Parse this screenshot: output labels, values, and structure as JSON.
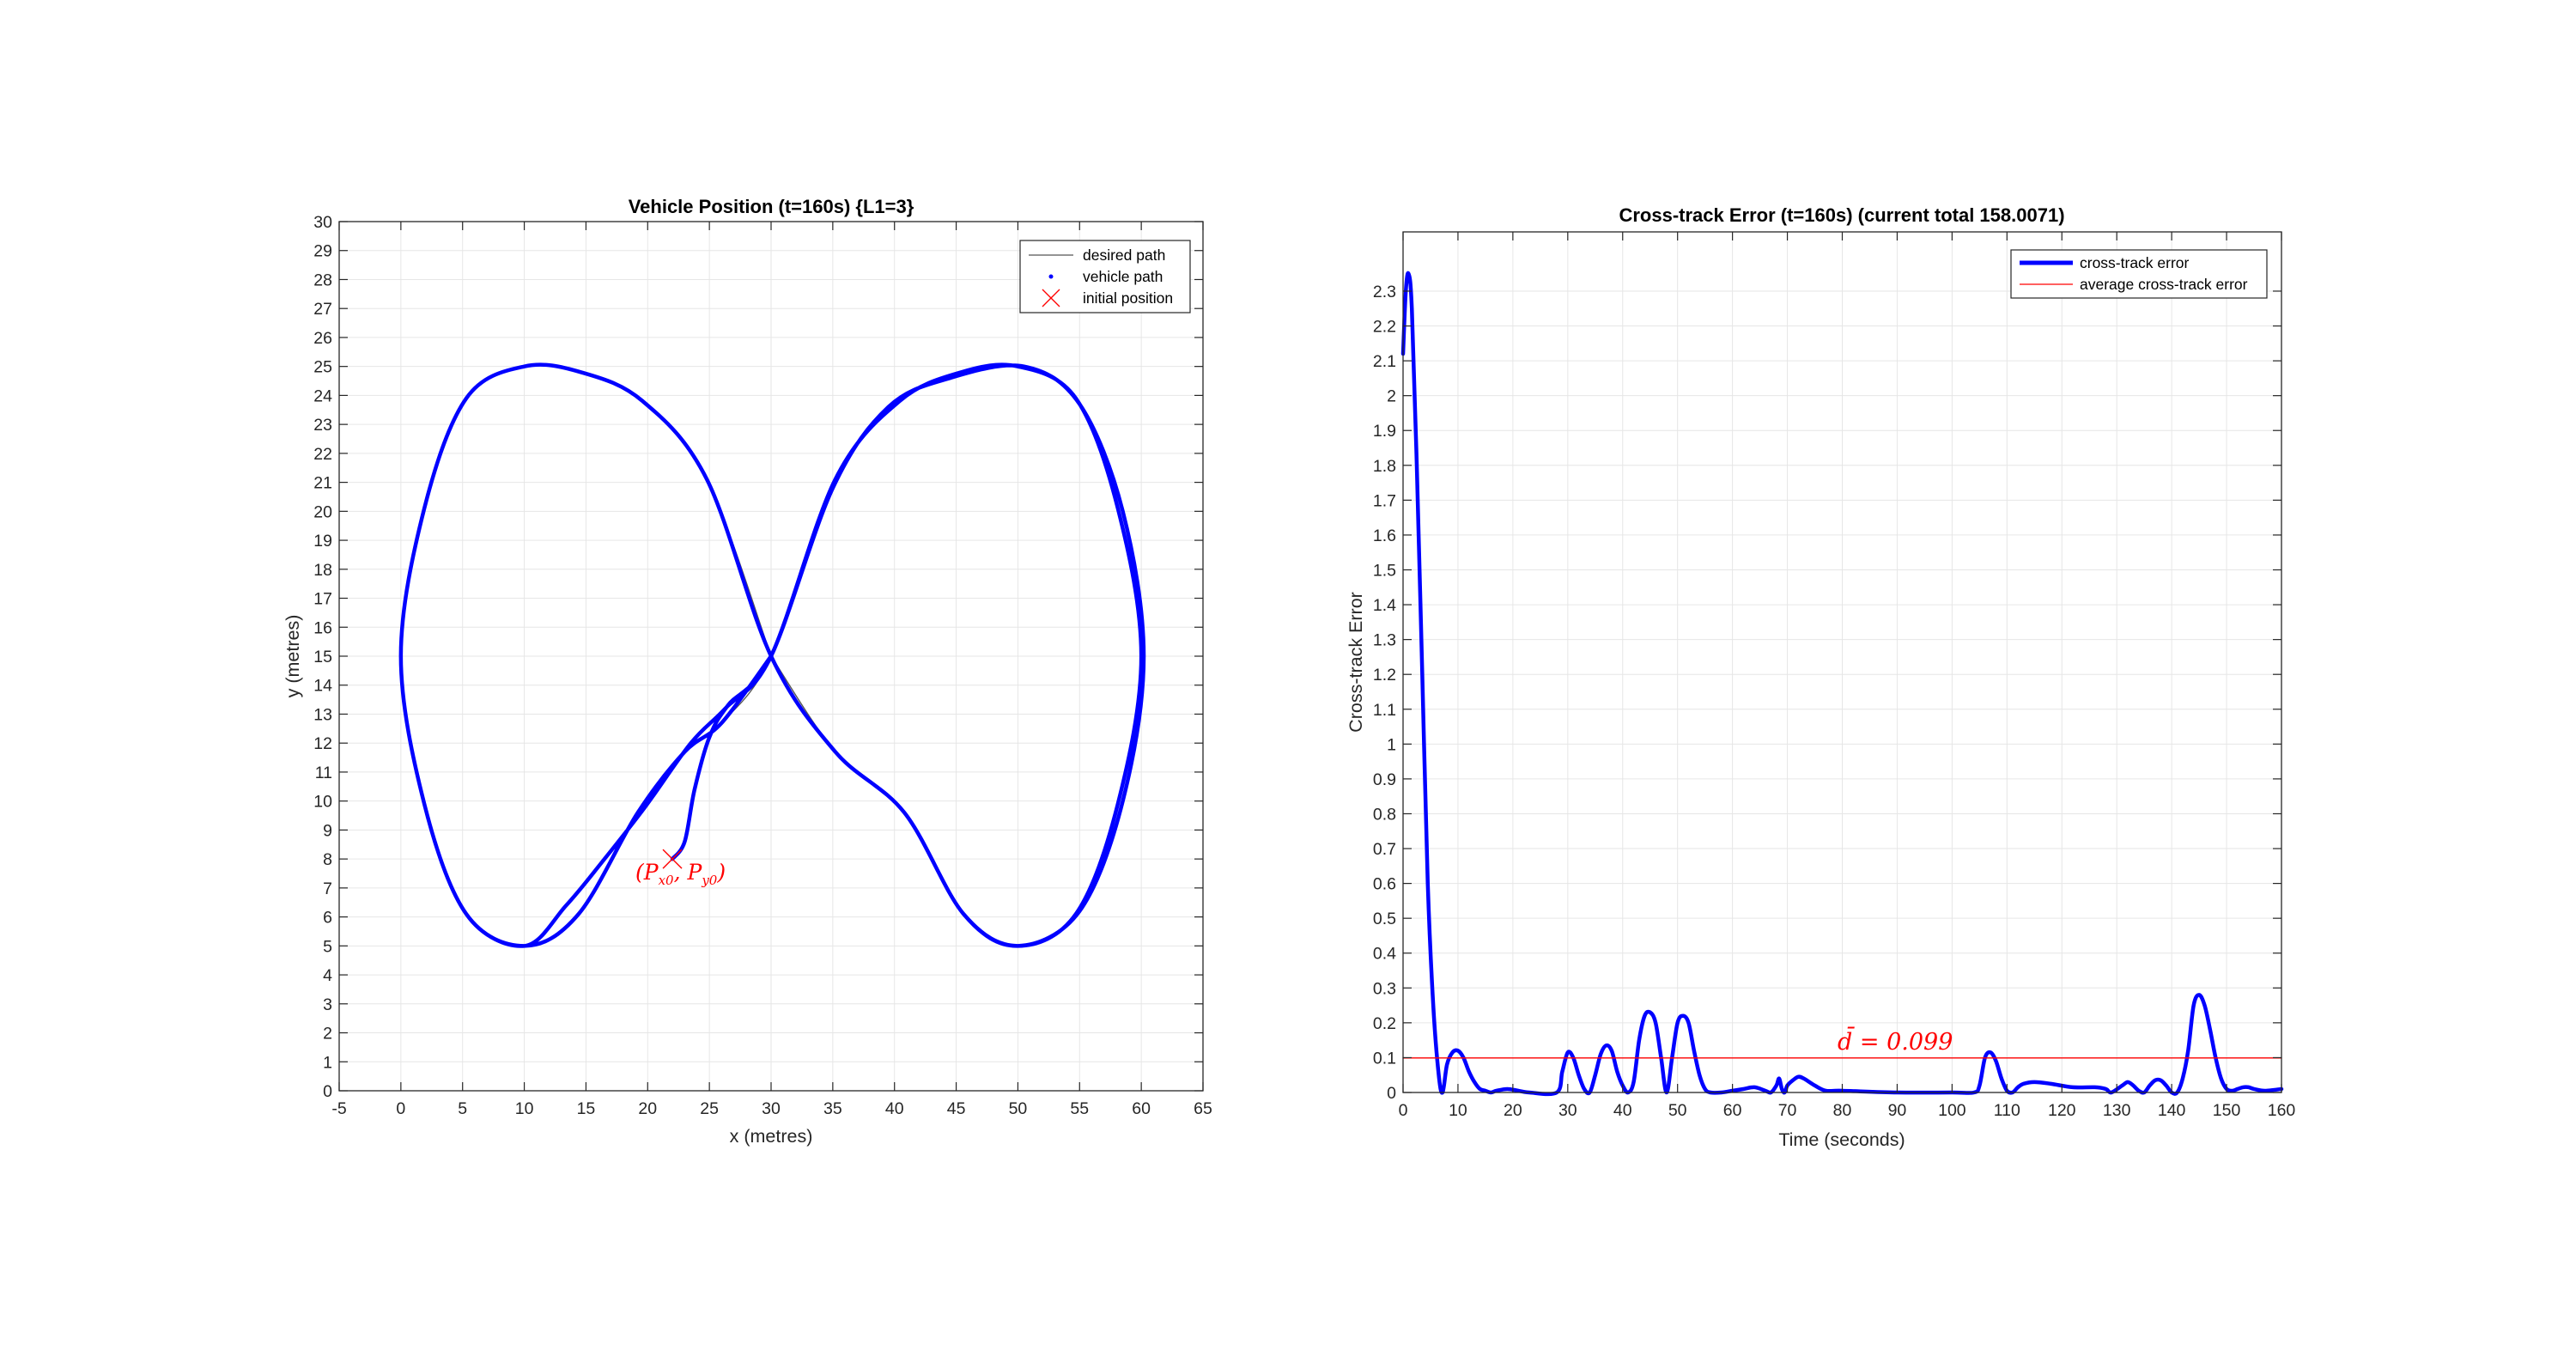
{
  "colors": {
    "desired_path": "#555555",
    "vehicle_path": "#0000ff",
    "initial_marker": "#ff0000",
    "average_line": "#ff0000",
    "grid": "#e6e6e6",
    "axes": "#262626"
  },
  "chart_data": [
    {
      "id": "position",
      "type": "line",
      "title": "Vehicle Position (t=160s) {L1=3}",
      "xlabel": "x (metres)",
      "ylabel": "y (metres)",
      "xlim": [
        -5,
        65
      ],
      "ylim": [
        0,
        30
      ],
      "xticks": [
        -5,
        0,
        5,
        10,
        15,
        20,
        25,
        30,
        35,
        40,
        45,
        50,
        55,
        60,
        65
      ],
      "yticks": [
        0,
        1,
        2,
        3,
        4,
        5,
        6,
        7,
        8,
        9,
        10,
        11,
        12,
        13,
        14,
        15,
        16,
        17,
        18,
        19,
        20,
        21,
        22,
        23,
        24,
        25,
        26,
        27,
        28,
        29,
        30
      ],
      "grid": true,
      "legend": {
        "position": "top-right",
        "entries": [
          "desired path",
          "vehicle path",
          "initial position"
        ]
      },
      "series": [
        {
          "name": "desired path",
          "style": "thin-line",
          "points": [
            [
              30,
              15
            ],
            [
              24.8,
              21.1
            ],
            [
              19.6,
              23.8
            ],
            [
              14.6,
              24.8
            ],
            [
              10,
              25
            ],
            [
              5.3,
              23.9
            ],
            [
              1.9,
              20.1
            ],
            [
              0,
              15
            ],
            [
              1.9,
              9.9
            ],
            [
              5.3,
              6.1
            ],
            [
              10,
              5
            ],
            [
              14.4,
              6.1
            ],
            [
              19.2,
              9.6
            ],
            [
              23,
              11.7
            ],
            [
              26,
              12.7
            ],
            [
              30,
              15
            ],
            [
              35.2,
              21.1
            ],
            [
              40.4,
              23.8
            ],
            [
              45.4,
              24.8
            ],
            [
              50,
              25
            ],
            [
              54.7,
              23.9
            ],
            [
              58.1,
              20.1
            ],
            [
              60,
              15
            ],
            [
              58.1,
              9.9
            ],
            [
              54.7,
              6.1
            ],
            [
              50,
              5
            ],
            [
              45.6,
              6.1
            ],
            [
              40.8,
              9.6
            ],
            [
              35.2,
              11.7
            ],
            [
              30,
              15
            ]
          ]
        },
        {
          "name": "vehicle path",
          "style": "thick-line",
          "points": [
            [
              22,
              8
            ],
            [
              23,
              8.6
            ],
            [
              23.8,
              10.4
            ],
            [
              25,
              12.2
            ],
            [
              26.5,
              13.3
            ],
            [
              30,
              15
            ],
            [
              35,
              20.8
            ],
            [
              39.5,
              23.6
            ],
            [
              44.5,
              24.6
            ],
            [
              50.5,
              25
            ],
            [
              55,
              23.7
            ],
            [
              58.5,
              20
            ],
            [
              60.2,
              15
            ],
            [
              58.5,
              10
            ],
            [
              55,
              6.2
            ],
            [
              50,
              5
            ],
            [
              45.6,
              6.1
            ],
            [
              40.8,
              9.6
            ],
            [
              35.2,
              11.7
            ],
            [
              30,
              15
            ],
            [
              24.8,
              21.1
            ],
            [
              19.6,
              23.8
            ],
            [
              14.6,
              24.8
            ],
            [
              10,
              25
            ],
            [
              5.3,
              23.9
            ],
            [
              1.9,
              20.1
            ],
            [
              0,
              15
            ],
            [
              1.9,
              9.9
            ],
            [
              5.3,
              6.1
            ],
            [
              10,
              5
            ],
            [
              13.4,
              6.4
            ],
            [
              16.5,
              8
            ],
            [
              19.8,
              9.8
            ],
            [
              23.5,
              12
            ],
            [
              26.3,
              13.2
            ],
            [
              30,
              15
            ],
            [
              35.2,
              21.1
            ],
            [
              40.4,
              23.8
            ],
            [
              45.4,
              24.8
            ],
            [
              50,
              25
            ],
            [
              54.7,
              23.9
            ],
            [
              58.1,
              20.1
            ],
            [
              60,
              15
            ],
            [
              58.1,
              9.9
            ],
            [
              54.7,
              6.1
            ],
            [
              50,
              5
            ],
            [
              45.6,
              6.1
            ],
            [
              40.8,
              9.6
            ],
            [
              35.2,
              11.7
            ],
            [
              30,
              15
            ],
            [
              24.8,
              21.1
            ],
            [
              19.6,
              23.8
            ],
            [
              14.6,
              24.8
            ],
            [
              10,
              25
            ],
            [
              5.3,
              23.9
            ],
            [
              1.9,
              20.1
            ],
            [
              0,
              15
            ],
            [
              1.9,
              9.9
            ],
            [
              5.3,
              6.1
            ],
            [
              10,
              5
            ],
            [
              14.4,
              6.1
            ],
            [
              19.2,
              9.6
            ],
            [
              23,
              11.7
            ],
            [
              26,
              12.7
            ],
            [
              30,
              15
            ]
          ]
        },
        {
          "name": "initial position",
          "style": "x-marker",
          "points": [
            [
              22,
              8
            ]
          ]
        }
      ],
      "annotations": [
        {
          "text": "(P_x0, P_y0)",
          "parts": [
            "(P",
            "x0",
            ", P",
            "y0",
            ")"
          ],
          "at": [
            22,
            8
          ]
        }
      ]
    },
    {
      "id": "cross_track",
      "type": "line",
      "title": "Cross-track Error (t=160s) (current total 158.0071)",
      "xlabel": "Time (seconds)",
      "ylabel": "Cross-track Error",
      "xlim": [
        0,
        160
      ],
      "ylim": [
        0,
        2.47
      ],
      "xticks": [
        0,
        10,
        20,
        30,
        40,
        50,
        60,
        70,
        80,
        90,
        100,
        110,
        120,
        130,
        140,
        150,
        160
      ],
      "yticks": [
        0,
        0.1,
        0.2,
        0.3,
        0.4,
        0.5,
        0.6,
        0.7,
        0.8,
        0.9,
        1,
        1.1,
        1.2,
        1.3,
        1.4,
        1.5,
        1.6,
        1.7,
        1.8,
        1.9,
        2,
        2.1,
        2.2,
        2.3
      ],
      "grid": true,
      "legend": {
        "position": "top-right",
        "entries": [
          "cross-track error",
          "average cross-track error"
        ]
      },
      "series": [
        {
          "name": "cross-track error",
          "style": "thick-line",
          "points": [
            [
              0,
              2.12
            ],
            [
              0.5,
              2.3
            ],
            [
              1,
              2.35
            ],
            [
              1.6,
              2.25
            ],
            [
              2.5,
              1.8
            ],
            [
              3.5,
              1.2
            ],
            [
              4.5,
              0.6
            ],
            [
              5.5,
              0.25
            ],
            [
              6.5,
              0.05
            ],
            [
              7.2,
              0
            ],
            [
              8,
              0.08
            ],
            [
              9,
              0.115
            ],
            [
              10,
              0.12
            ],
            [
              11,
              0.1
            ],
            [
              12,
              0.06
            ],
            [
              13,
              0.03
            ],
            [
              14,
              0.01
            ],
            [
              15,
              0.005
            ],
            [
              16,
              0
            ],
            [
              17,
              0.005
            ],
            [
              19,
              0.01
            ],
            [
              21,
              0.005
            ],
            [
              23,
              0
            ],
            [
              28,
              0
            ],
            [
              29,
              0.06
            ],
            [
              30,
              0.115
            ],
            [
              31,
              0.1
            ],
            [
              32,
              0.05
            ],
            [
              33,
              0.01
            ],
            [
              34,
              0
            ],
            [
              35,
              0.05
            ],
            [
              36,
              0.11
            ],
            [
              37,
              0.135
            ],
            [
              38,
              0.12
            ],
            [
              39,
              0.06
            ],
            [
              40,
              0.02
            ],
            [
              41,
              0
            ],
            [
              42,
              0.03
            ],
            [
              43,
              0.15
            ],
            [
              44,
              0.22
            ],
            [
              45,
              0.23
            ],
            [
              46,
              0.2
            ],
            [
              47,
              0.1
            ],
            [
              48,
              0
            ],
            [
              49,
              0.1
            ],
            [
              50,
              0.2
            ],
            [
              51,
              0.22
            ],
            [
              52,
              0.2
            ],
            [
              53,
              0.12
            ],
            [
              54,
              0.05
            ],
            [
              55,
              0.01
            ],
            [
              56,
              0
            ],
            [
              58,
              0
            ],
            [
              60,
              0.005
            ],
            [
              62,
              0.01
            ],
            [
              64,
              0.015
            ],
            [
              66,
              0.005
            ],
            [
              67,
              0
            ],
            [
              68,
              0.02
            ],
            [
              68.5,
              0.04
            ],
            [
              69,
              0.01
            ],
            [
              69.5,
              0
            ],
            [
              70,
              0.02
            ],
            [
              71,
              0.035
            ],
            [
              72,
              0.045
            ],
            [
              73,
              0.04
            ],
            [
              75,
              0.02
            ],
            [
              77,
              0.005
            ],
            [
              80,
              0.005
            ],
            [
              90,
              0
            ],
            [
              100,
              0
            ],
            [
              104,
              0
            ],
            [
              105,
              0.02
            ],
            [
              106,
              0.1
            ],
            [
              107,
              0.115
            ],
            [
              108,
              0.09
            ],
            [
              109,
              0.04
            ],
            [
              110,
              0.005
            ],
            [
              111,
              0
            ],
            [
              112,
              0.015
            ],
            [
              113,
              0.025
            ],
            [
              115,
              0.03
            ],
            [
              118,
              0.025
            ],
            [
              122,
              0.015
            ],
            [
              126,
              0.015
            ],
            [
              128,
              0.01
            ],
            [
              129,
              0
            ],
            [
              131,
              0.02
            ],
            [
              132,
              0.03
            ],
            [
              133,
              0.02
            ],
            [
              134,
              0.005
            ],
            [
              135,
              0
            ],
            [
              136,
              0.02
            ],
            [
              137,
              0.035
            ],
            [
              138,
              0.035
            ],
            [
              139,
              0.02
            ],
            [
              140,
              0
            ],
            [
              141,
              0
            ],
            [
              142,
              0.04
            ],
            [
              143,
              0.12
            ],
            [
              144,
              0.25
            ],
            [
              145,
              0.28
            ],
            [
              146,
              0.25
            ],
            [
              147,
              0.18
            ],
            [
              148,
              0.1
            ],
            [
              149,
              0.04
            ],
            [
              150,
              0.01
            ],
            [
              151,
              0.005
            ],
            [
              152,
              0.01
            ],
            [
              153,
              0.015
            ],
            [
              154,
              0.015
            ],
            [
              155,
              0.01
            ],
            [
              157,
              0.005
            ],
            [
              160,
              0.01
            ]
          ]
        },
        {
          "name": "average cross-track error",
          "style": "thin-line",
          "points": [
            [
              0,
              0.099
            ],
            [
              160,
              0.099
            ]
          ]
        }
      ],
      "annotations": [
        {
          "text": "d̄ = 0.099",
          "parts": [
            "d̄",
            " = 0.099"
          ],
          "at": [
            80,
            0.099
          ]
        }
      ]
    }
  ]
}
